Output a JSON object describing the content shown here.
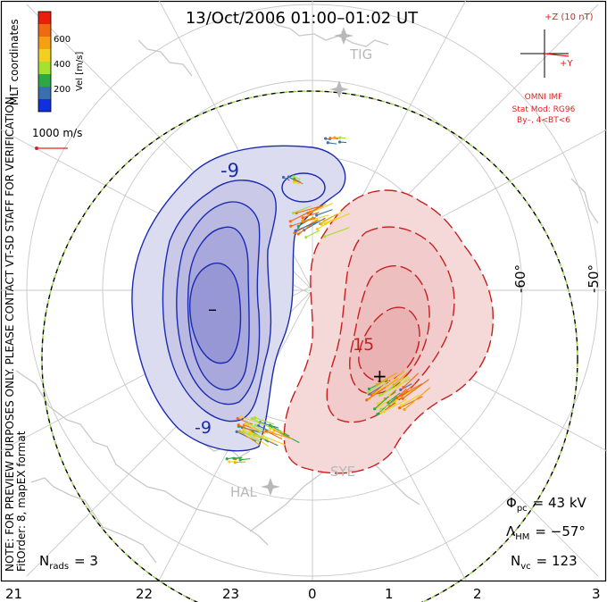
{
  "title": "13/Oct/2006 01:00–01:02 UT",
  "colorbar": {
    "label": "Vel [m/s]",
    "ticks": [
      "600",
      "400",
      "200"
    ],
    "colors": [
      "#e8200a",
      "#f06a10",
      "#f5a010",
      "#f2d020",
      "#a6e030",
      "#2aa84a",
      "#3a6fb0",
      "#1030e0"
    ]
  },
  "coordinates_label": "MLT coordinates",
  "scale": {
    "label": "1000 m/s",
    "color": "#e02020"
  },
  "side_note": "NOTE: FOR PREVIEW PURPOSES ONLY. PLEASE CONTACT VT-SD STAFF FOR VERIFICATION.",
  "fit_note": "FitOrder: 8, mapEX format",
  "imf": {
    "axis_z": "+Z (10 nT)",
    "axis_y": "+Y",
    "source": "OMNI IMF",
    "model": "Stat Mod: RG96",
    "condition": "By–, 4<BT<6",
    "color": "#e02020"
  },
  "stations": [
    "TIG",
    "SYE",
    "HAL"
  ],
  "latitude_labels": [
    "-60°",
    "-50°"
  ],
  "contour_labels": {
    "negative": "-9",
    "negative_lower": "-9",
    "positive": "15"
  },
  "markers": {
    "minimum": "–",
    "maximum": "+"
  },
  "stats": {
    "phi_pc_symbol": "Φ",
    "phi_pc_sub": "pc",
    "phi_pc_value": "= 43 kV",
    "lambda_hm_symbol": "Λ",
    "lambda_hm_sub": "HM",
    "lambda_hm_value": "= −57°",
    "n_vc_symbol": "N",
    "n_vc_sub": "vc",
    "n_vc_value": "= 123",
    "n_rads_symbol": "N",
    "n_rads_sub": "rads",
    "n_rads_value": "= 3"
  },
  "mlt_axis": [
    "21",
    "22",
    "23",
    "0",
    "1",
    "2",
    "3"
  ],
  "colors": {
    "negative_contour": "#1a2bb0",
    "positive_contour": "#c81e1e",
    "negative_fill": "#dcdcf0",
    "positive_fill": "#f5d8d8",
    "hmb_dash_a": "#000000",
    "hmb_dash_b": "#8fd23a",
    "coast": "#c8c8c8",
    "grid": "#c8c8c8"
  }
}
